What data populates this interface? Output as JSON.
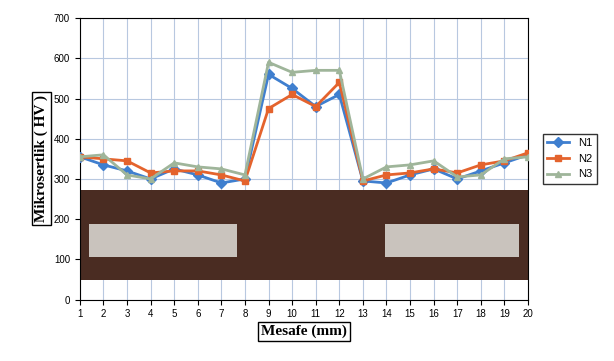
{
  "chart_data": {
    "type": "line",
    "x_label": "Mesafe (mm)",
    "y_label": "Mikrosertlik ( HV )",
    "x": [
      1,
      2,
      3,
      4,
      5,
      6,
      7,
      8,
      9,
      10,
      11,
      12,
      13,
      14,
      15,
      16,
      17,
      18,
      19,
      20
    ],
    "series": [
      {
        "name": "N1",
        "color": "#3f7fcf",
        "marker": "diamond",
        "values": [
          355,
          335,
          320,
          300,
          325,
          310,
          290,
          300,
          560,
          525,
          480,
          510,
          295,
          290,
          310,
          325,
          300,
          320,
          340,
          360
        ]
      },
      {
        "name": "N2",
        "color": "#e4632d",
        "marker": "square",
        "values": [
          355,
          350,
          345,
          315,
          320,
          320,
          310,
          295,
          475,
          510,
          480,
          540,
          295,
          310,
          315,
          325,
          315,
          335,
          345,
          365
        ]
      },
      {
        "name": "N3",
        "color": "#9fb59a",
        "marker": "triangle",
        "values": [
          355,
          360,
          310,
          300,
          340,
          330,
          325,
          310,
          590,
          565,
          570,
          570,
          300,
          330,
          335,
          345,
          305,
          310,
          350,
          355
        ]
      }
    ],
    "xlim": [
      1,
      20
    ],
    "xticks": [
      1,
      2,
      3,
      4,
      5,
      6,
      7,
      8,
      9,
      10,
      11,
      12,
      13,
      14,
      15,
      16,
      17,
      18,
      19,
      20
    ],
    "ylim": [
      0,
      700
    ],
    "yticks": [
      0,
      100,
      200,
      300,
      400,
      500,
      600,
      700
    ],
    "grid": true,
    "legend": "right"
  }
}
